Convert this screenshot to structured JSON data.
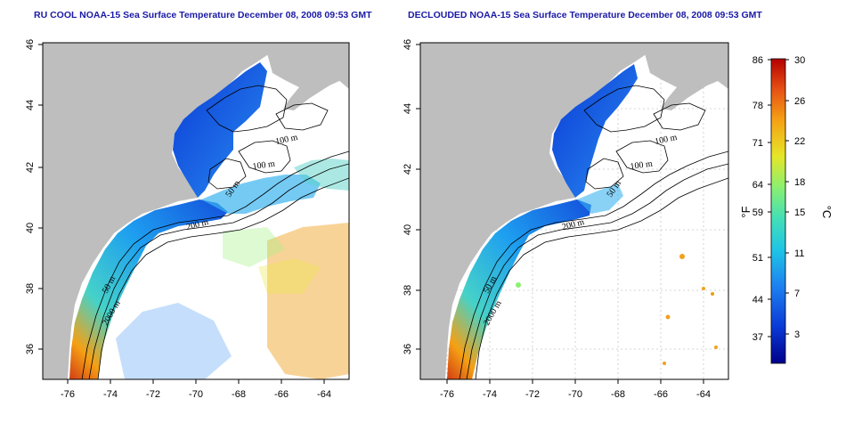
{
  "panels": [
    {
      "title": "RU COOL NOAA-15 Sea Surface Temperature December 08, 2008 09:53 GMT",
      "contour_labels": [
        "100 m",
        "100 m",
        "50 m",
        "200 m",
        "50 m",
        "2000 m"
      ]
    },
    {
      "title": "DECLOUDED NOAA-15 Sea Surface Temperature December 08, 2008 09:53 GMT",
      "contour_labels": [
        "100 m",
        "100 m",
        "50 m",
        "200 m",
        "50 m",
        "2000 m"
      ]
    }
  ],
  "axes": {
    "lon_ticks": [
      "-76",
      "-74",
      "-72",
      "-70",
      "-68",
      "-66",
      "-64"
    ],
    "lat_ticks": [
      "36",
      "38",
      "40",
      "42",
      "44",
      "46"
    ]
  },
  "colorbar": {
    "fahrenheit_ticks": [
      "86",
      "78",
      "71",
      "64",
      "59",
      "51",
      "44",
      "37"
    ],
    "celsius_ticks": [
      "30",
      "26",
      "22",
      "18",
      "15",
      "11",
      "7",
      "3"
    ],
    "fahrenheit_unit": "°F",
    "celsius_unit": "°C"
  },
  "colors": {
    "land": "#bebebe",
    "title": "#1a1aa6",
    "scale": [
      "#00008b",
      "#0a3ad6",
      "#1e7ff0",
      "#1ec4e6",
      "#46e0b4",
      "#8cf06e",
      "#e6e628",
      "#f5a014",
      "#e65014",
      "#b40000"
    ]
  }
}
